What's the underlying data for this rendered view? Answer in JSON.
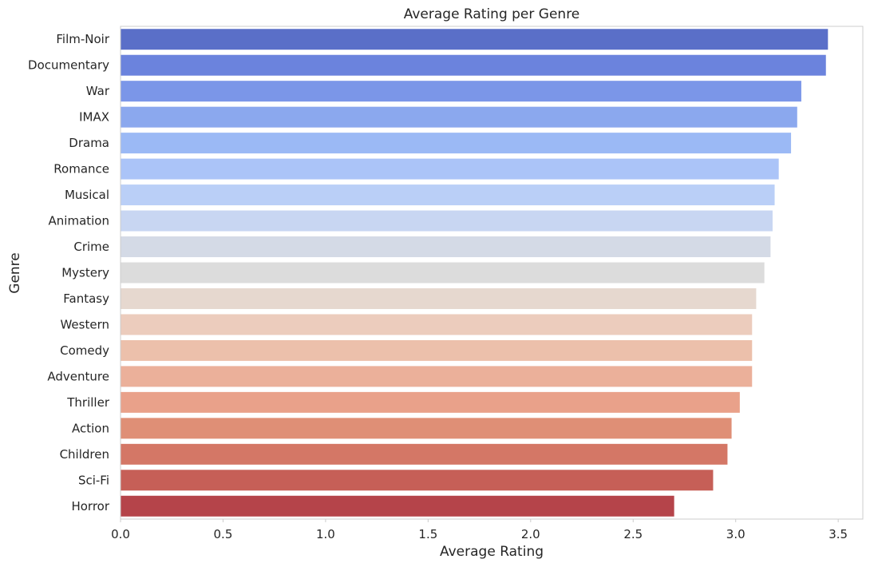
{
  "chart_data": {
    "type": "bar",
    "orientation": "horizontal",
    "title": "Average Rating per Genre",
    "xlabel": "Average Rating",
    "ylabel": "Genre",
    "xlim": [
      0,
      3.62
    ],
    "xticks": [
      "0.0",
      "0.5",
      "1.0",
      "1.5",
      "2.0",
      "2.5",
      "3.0",
      "3.5"
    ],
    "grid": false,
    "categories": [
      "Film-Noir",
      "Documentary",
      "War",
      "IMAX",
      "Drama",
      "Romance",
      "Musical",
      "Animation",
      "Crime",
      "Mystery",
      "Fantasy",
      "Western",
      "Comedy",
      "Adventure",
      "Thriller",
      "Action",
      "Children",
      "Sci-Fi",
      "Horror"
    ],
    "values": [
      3.45,
      3.44,
      3.32,
      3.3,
      3.27,
      3.21,
      3.19,
      3.18,
      3.17,
      3.14,
      3.1,
      3.08,
      3.08,
      3.08,
      3.02,
      2.98,
      2.96,
      2.89,
      2.7
    ],
    "colors": [
      "#5a6fc8",
      "#6b83dd",
      "#7b96e8",
      "#8ba8ee",
      "#9bb9f5",
      "#abc4f8",
      "#bacff7",
      "#c8d6f2",
      "#d4dae6",
      "#dcdcdc",
      "#e6d8cf",
      "#ecccbd",
      "#ecc0ab",
      "#ebb09a",
      "#e9a18a",
      "#df8f76",
      "#d47766",
      "#c65f57",
      "#b5444a"
    ]
  }
}
